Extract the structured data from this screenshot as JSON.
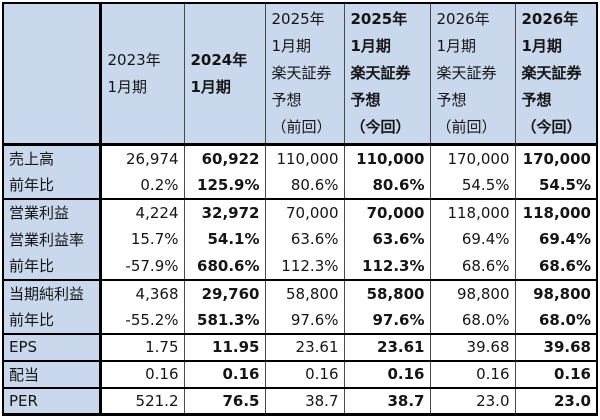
{
  "table": {
    "corner_label": "",
    "columns": [
      {
        "label": "2023年\n1月期",
        "bold": false
      },
      {
        "label": "2024年\n1月期",
        "bold": true
      },
      {
        "label": "2025年\n1月期\n楽天証券\n予想\n（前回）",
        "bold": false
      },
      {
        "label": "2025年\n1月期\n楽天証券\n予想\n（今回）",
        "bold": true
      },
      {
        "label": "2026年\n1月期\n楽天証券\n予想\n（前回）",
        "bold": false
      },
      {
        "label": "2026年\n1月期\n楽天証券\n予想\n（今回）",
        "bold": true
      }
    ],
    "rows": [
      {
        "label": "売上高",
        "group_start": true,
        "values": [
          "26,974",
          "60,922",
          "110,000",
          "110,000",
          "170,000",
          "170,000"
        ]
      },
      {
        "label": "前年比",
        "group_start": false,
        "values": [
          "0.2%",
          "125.9%",
          "80.6%",
          "80.6%",
          "54.5%",
          "54.5%"
        ]
      },
      {
        "label": "営業利益",
        "group_start": true,
        "values": [
          "4,224",
          "32,972",
          "70,000",
          "70,000",
          "118,000",
          "118,000"
        ]
      },
      {
        "label": "営業利益率",
        "group_start": false,
        "values": [
          "15.7%",
          "54.1%",
          "63.6%",
          "63.6%",
          "69.4%",
          "69.4%"
        ]
      },
      {
        "label": "前年比",
        "group_start": false,
        "values": [
          "-57.9%",
          "680.6%",
          "112.3%",
          "112.3%",
          "68.6%",
          "68.6%"
        ]
      },
      {
        "label": "当期純利益",
        "group_start": true,
        "values": [
          "4,368",
          "29,760",
          "58,800",
          "58,800",
          "98,800",
          "98,800"
        ]
      },
      {
        "label": "前年比",
        "group_start": false,
        "values": [
          "-55.2%",
          "581.3%",
          "97.6%",
          "97.6%",
          "68.0%",
          "68.0%"
        ]
      },
      {
        "label": "EPS",
        "group_start": true,
        "values": [
          "1.75",
          "11.95",
          "23.61",
          "23.61",
          "39.68",
          "39.68"
        ]
      },
      {
        "label": "配当",
        "group_start": true,
        "values": [
          "0.16",
          "0.16",
          "0.16",
          "0.16",
          "0.16",
          "0.16"
        ]
      },
      {
        "label": "PER",
        "group_start": true,
        "values": [
          "521.2",
          "76.5",
          "38.7",
          "38.7",
          "23.0",
          "23.0"
        ]
      }
    ],
    "colors": {
      "header_bg": "#c9d8ec",
      "label_bg": "#c9d8ec",
      "cell_bg": "#ffffff",
      "border_thick": "#000000",
      "border_thin": "#4a4a4a",
      "text": "#151515"
    }
  },
  "chart_data": {
    "type": "table",
    "columns": [
      "",
      "2023年1月期",
      "2024年1月期",
      "2025年1月期 楽天証券予想（前回）",
      "2025年1月期 楽天証券予想（今回）",
      "2026年1月期 楽天証券予想（前回）",
      "2026年1月期 楽天証券予想（今回）"
    ],
    "rows": [
      [
        "売上高",
        "26,974",
        "60,922",
        "110,000",
        "110,000",
        "170,000",
        "170,000"
      ],
      [
        "前年比",
        "0.2%",
        "125.9%",
        "80.6%",
        "80.6%",
        "54.5%",
        "54.5%"
      ],
      [
        "営業利益",
        "4,224",
        "32,972",
        "70,000",
        "70,000",
        "118,000",
        "118,000"
      ],
      [
        "営業利益率",
        "15.7%",
        "54.1%",
        "63.6%",
        "63.6%",
        "69.4%",
        "69.4%"
      ],
      [
        "前年比",
        "-57.9%",
        "680.6%",
        "112.3%",
        "112.3%",
        "68.6%",
        "68.6%"
      ],
      [
        "当期純利益",
        "4,368",
        "29,760",
        "58,800",
        "58,800",
        "98,800",
        "98,800"
      ],
      [
        "前年比",
        "-55.2%",
        "581.3%",
        "97.6%",
        "97.6%",
        "68.0%",
        "68.0%"
      ],
      [
        "EPS",
        "1.75",
        "11.95",
        "23.61",
        "23.61",
        "39.68",
        "39.68"
      ],
      [
        "配当",
        "0.16",
        "0.16",
        "0.16",
        "0.16",
        "0.16",
        "0.16"
      ],
      [
        "PER",
        "521.2",
        "76.5",
        "38.7",
        "38.7",
        "23.0",
        "23.0"
      ]
    ],
    "bold_columns": [
      2,
      4,
      6
    ],
    "notes": "group separator lines after rows: 前年比(2), 前年比(5), 前年比(7), EPS(8), 配当(9)"
  }
}
